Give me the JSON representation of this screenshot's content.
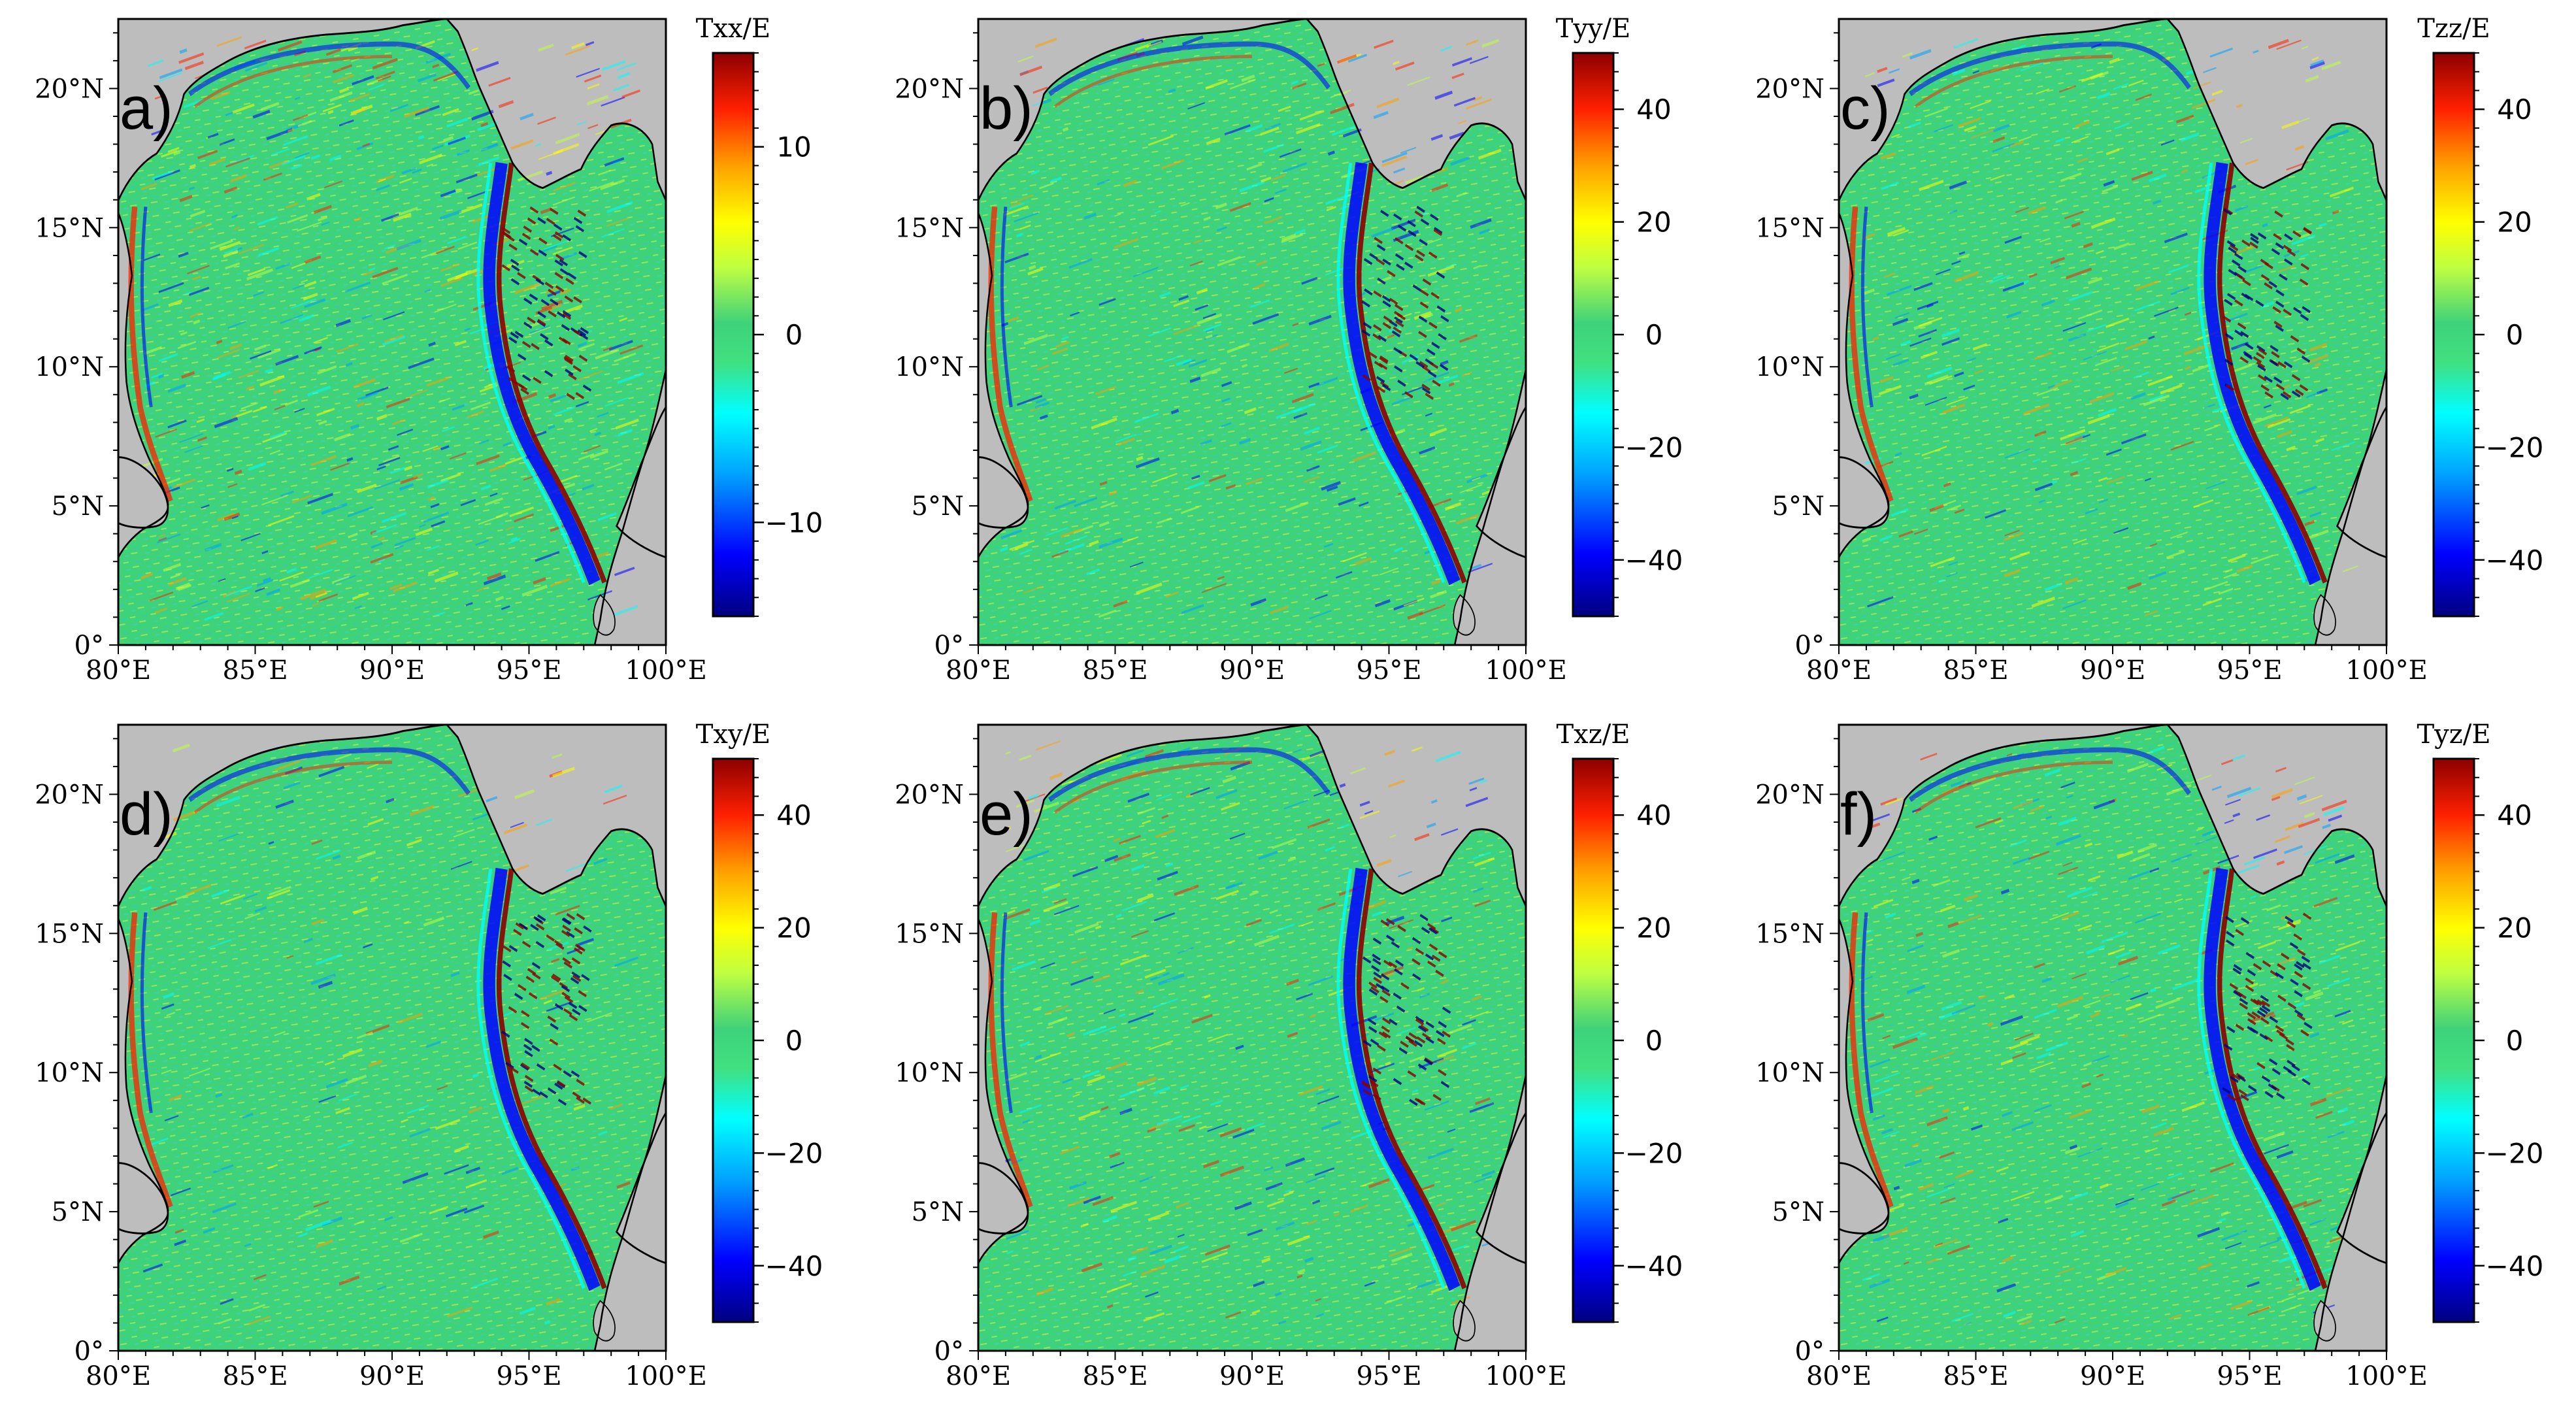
{
  "colors": {
    "land": "#bdbdbd",
    "sea": "#3ed27a",
    "coast": "#000000",
    "colormap": [
      "#00007f",
      "#0000ff",
      "#00a0ff",
      "#00ffff",
      "#40e080",
      "#3ed27a",
      "#c0ff40",
      "#ffff00",
      "#ffa000",
      "#ff2000",
      "#8c0000"
    ]
  },
  "axes": {
    "x_ticks": [
      "80°E",
      "85°E",
      "90°E",
      "95°E",
      "100°E"
    ],
    "y_ticks": [
      "0°",
      "5°N",
      "10°N",
      "15°N",
      "20°N"
    ],
    "lon_range": [
      80,
      100
    ],
    "lat_range": [
      0,
      22.5
    ]
  },
  "panels": [
    {
      "id": "a",
      "letter": "a)",
      "colorbar_title": "Txx/E",
      "range": [
        -15,
        15
      ],
      "ticks": [
        "10",
        "0",
        "−10"
      ],
      "tick_values": [
        10,
        0,
        -10
      ]
    },
    {
      "id": "b",
      "letter": "b)",
      "colorbar_title": "Tyy/E",
      "range": [
        -50,
        50
      ],
      "ticks": [
        "40",
        "20",
        "0",
        "−20",
        "−40"
      ],
      "tick_values": [
        40,
        20,
        0,
        -20,
        -40
      ]
    },
    {
      "id": "c",
      "letter": "c)",
      "colorbar_title": "Tzz/E",
      "range": [
        -50,
        50
      ],
      "ticks": [
        "40",
        "20",
        "0",
        "−20",
        "−40"
      ],
      "tick_values": [
        40,
        20,
        0,
        -20,
        -40
      ]
    },
    {
      "id": "d",
      "letter": "d)",
      "colorbar_title": "Txy/E",
      "range": [
        -50,
        50
      ],
      "ticks": [
        "40",
        "20",
        "0",
        "−20",
        "−40"
      ],
      "tick_values": [
        40,
        20,
        0,
        -20,
        -40
      ]
    },
    {
      "id": "e",
      "letter": "e)",
      "colorbar_title": "Txz/E",
      "range": [
        -50,
        50
      ],
      "ticks": [
        "40",
        "20",
        "0",
        "−20",
        "−40"
      ],
      "tick_values": [
        40,
        20,
        0,
        -20,
        -40
      ]
    },
    {
      "id": "f",
      "letter": "f)",
      "colorbar_title": "Tyz/E",
      "range": [
        -50,
        50
      ],
      "ticks": [
        "40",
        "20",
        "0",
        "−20",
        "−40"
      ],
      "tick_values": [
        40,
        20,
        0,
        -20,
        -40
      ]
    }
  ]
}
